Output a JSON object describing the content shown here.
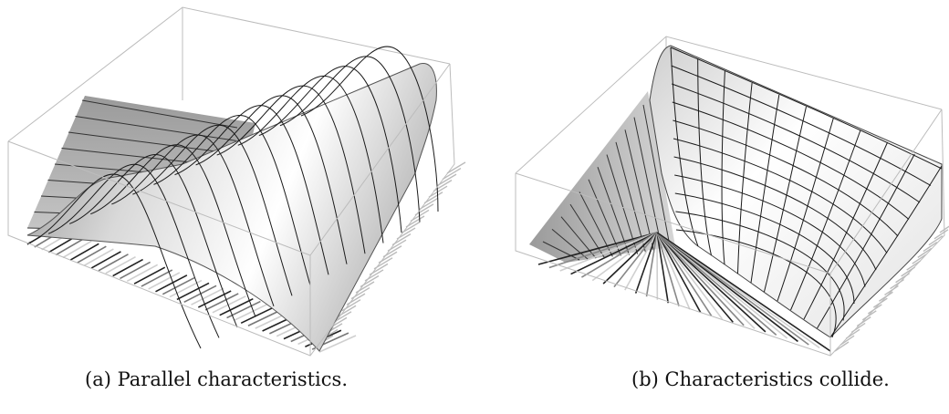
{
  "figures": [
    {
      "id": "a",
      "caption": "(a)  Parallel characteristics."
    },
    {
      "id": "b",
      "caption": "(b)  Characteristics collide."
    }
  ],
  "colors": {
    "box": "#b8b8b8",
    "surface_light": "#f4f4f4",
    "surface_shadow": "#9c9c9c",
    "mesh": "#1a1a1a",
    "ground_dark": "#222222",
    "ground_light": "#cfcfcf"
  }
}
